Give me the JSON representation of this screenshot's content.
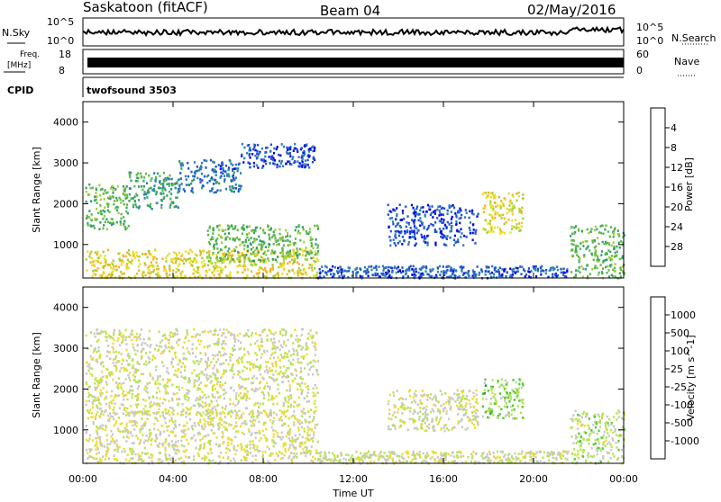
{
  "header": {
    "station": "Saskatoon (fitACF)",
    "beam": "Beam 04",
    "date": "02/May/2016"
  },
  "noise_panel": {
    "left_label": "N.Sky",
    "left_top_tick": "10^5",
    "left_bottom_tick": "10^0",
    "right_label": "N.Search",
    "right_top_tick": "10^5",
    "right_bottom_tick": "10^0"
  },
  "freq_panel": {
    "left_label_1": "Freq.",
    "left_label_2": "[MHz]",
    "left_top_tick": "18",
    "left_bottom_tick": "8",
    "right_label": "Nave",
    "right_top_tick": "60",
    "right_bottom_tick": "0"
  },
  "cpid_panel": {
    "label": "CPID",
    "program": "twofsound 3503"
  },
  "chart_data": [
    {
      "type": "heatmap",
      "title": "",
      "ylabel": "Slant Range [km]",
      "xlabel": "",
      "xlim": [
        "00:00",
        "24:00"
      ],
      "ylim": [
        180,
        4500
      ],
      "yticks": [
        "1000",
        "2000",
        "3000",
        "4000"
      ],
      "colorbar": {
        "label": "Power [dB]",
        "range": [
          0,
          30
        ],
        "ticks": [
          "4",
          "8",
          "12",
          "16",
          "20",
          "24",
          "28"
        ],
        "colors": [
          "#0000e6",
          "#1e50d2",
          "#2e7db8",
          "#33a06a",
          "#5fb84a",
          "#9ed03c",
          "#e8e020",
          "#f5b41e",
          "#f08214",
          "#e8501e",
          "#e61e1e"
        ]
      },
      "regions": [
        {
          "t0": 0.1,
          "t1": 2.0,
          "r0": 1400,
          "r1": 2500,
          "mean": 12
        },
        {
          "t0": 2.0,
          "t1": 4.2,
          "r0": 1900,
          "r1": 2800,
          "mean": 10
        },
        {
          "t0": 4.2,
          "t1": 7.0,
          "r0": 2300,
          "r1": 3100,
          "mean": 6
        },
        {
          "t0": 7.0,
          "t1": 10.3,
          "r0": 2900,
          "r1": 3500,
          "mean": 4
        },
        {
          "t0": 0.1,
          "t1": 10.4,
          "r0": 200,
          "r1": 900,
          "mean": 18
        },
        {
          "t0": 5.5,
          "t1": 10.4,
          "r0": 600,
          "r1": 1500,
          "mean": 12
        },
        {
          "t0": 10.4,
          "t1": 21.5,
          "r0": 200,
          "r1": 500,
          "mean": 5
        },
        {
          "t0": 13.5,
          "t1": 17.5,
          "r0": 1000,
          "r1": 2000,
          "mean": 4
        },
        {
          "t0": 17.7,
          "t1": 19.5,
          "r0": 1300,
          "r1": 2300,
          "mean": 18
        },
        {
          "t0": 21.6,
          "t1": 24.0,
          "r0": 200,
          "r1": 1500,
          "mean": 12
        }
      ]
    },
    {
      "type": "heatmap",
      "title": "",
      "ylabel": "Slant Range [km]",
      "xlabel": "Time UT",
      "xlim": [
        "00:00",
        "24:00"
      ],
      "ylim": [
        180,
        4500
      ],
      "xticks": [
        "00:00",
        "04:00",
        "08:00",
        "12:00",
        "16:00",
        "20:00",
        "00:00"
      ],
      "yticks": [
        "1000",
        "2000",
        "3000",
        "4000"
      ],
      "colorbar": {
        "label": "Velocity [m s^-1]",
        "range": [
          -1200,
          1200
        ],
        "ticks": [
          "1000",
          "500",
          "100",
          "25",
          "-25",
          "-100",
          "-500",
          "-1000"
        ],
        "colors": [
          "#1e3cb4",
          "#3278c8",
          "#288c3c",
          "#50c832",
          "#b4e650",
          "#c8c8c8",
          "#f0dc32",
          "#f0b41e",
          "#f08c1e",
          "#f0641e",
          "#e61e1e"
        ]
      },
      "regions": [
        {
          "t0": 0.1,
          "t1": 10.4,
          "r0": 1400,
          "r1": 3500,
          "mean": 0
        },
        {
          "t0": 0.1,
          "t1": 10.4,
          "r0": 200,
          "r1": 1500,
          "mean": 60
        },
        {
          "t0": 10.4,
          "t1": 21.5,
          "r0": 200,
          "r1": 500,
          "mean": -40
        },
        {
          "t0": 13.5,
          "t1": 17.5,
          "r0": 1000,
          "r1": 2000,
          "mean": 0
        },
        {
          "t0": 17.7,
          "t1": 19.5,
          "r0": 1300,
          "r1": 2300,
          "mean": -300
        },
        {
          "t0": 21.6,
          "t1": 24.0,
          "r0": 200,
          "r1": 1500,
          "mean": -120
        }
      ]
    }
  ]
}
